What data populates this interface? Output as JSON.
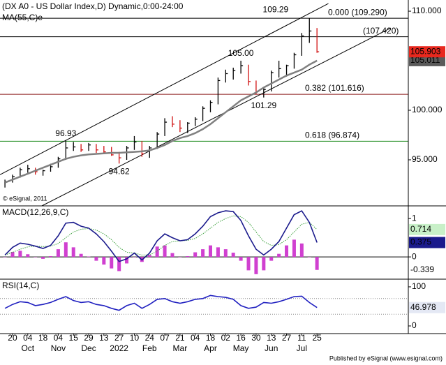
{
  "chart_data": [
    {
      "type": "ohlc",
      "title": "(DX A0 - US Dollar Index,D) Dynamic,0:00-24:00",
      "x": [
        -1,
        0,
        1,
        2,
        3,
        4,
        5,
        6,
        7,
        8,
        9,
        10,
        11,
        12,
        13,
        14,
        15,
        16,
        17,
        18,
        19,
        20,
        21,
        22,
        23,
        24,
        25,
        26,
        27,
        28,
        29,
        30,
        31,
        32,
        33,
        34,
        35,
        36,
        37,
        38,
        39,
        40
      ],
      "high": [
        93.0,
        93.5,
        94.2,
        94.5,
        94.2,
        94.0,
        94.6,
        95.3,
        96.93,
        96.8,
        96.6,
        96.7,
        96.6,
        96.4,
        96.3,
        95.8,
        96.4,
        97.4,
        96.9,
        96.4,
        97.8,
        99.2,
        99.4,
        99.0,
        98.8,
        99.3,
        100.4,
        101.0,
        103.3,
        104.1,
        104.3,
        105.0,
        104.6,
        103.0,
        102.3,
        104.0,
        105.0,
        104.6,
        105.8,
        107.8,
        109.29,
        108.3
      ],
      "low": [
        92.2,
        92.7,
        93.2,
        93.7,
        93.5,
        93.4,
        93.8,
        94.2,
        95.0,
        95.9,
        95.8,
        95.9,
        95.7,
        95.6,
        95.4,
        94.62,
        95.0,
        96.0,
        95.3,
        95.2,
        96.1,
        97.4,
        98.3,
        97.8,
        97.7,
        98.4,
        98.9,
        99.8,
        100.6,
        102.8,
        103.1,
        103.7,
        102.5,
        101.6,
        101.29,
        101.9,
        103.3,
        103.4,
        104.2,
        105.5,
        106.8,
        105.8
      ],
      "close": [
        92.8,
        93.3,
        94.0,
        94.1,
        93.8,
        93.9,
        94.3,
        95.1,
        96.2,
        96.3,
        96.0,
        96.5,
        96.0,
        95.8,
        95.5,
        95.2,
        96.2,
        96.8,
        95.6,
        96.2,
        97.6,
        98.8,
        98.6,
        98.2,
        98.7,
        99.1,
        100.2,
        100.8,
        103.0,
        103.7,
        104.0,
        104.5,
        102.9,
        101.9,
        102.1,
        103.8,
        104.2,
        104.5,
        105.6,
        107.5,
        108.0,
        105.903
      ],
      "close_label": "105.903",
      "up_color": "#000000",
      "down_color": "#d01010",
      "label_bg": "#e8281e",
      "xlim": [
        -1.65,
        52
      ],
      "ylim": [
        90.35,
        111.13
      ],
      "yticks": [
        {
          "value": 95,
          "label": "95.000"
        },
        {
          "value": 100,
          "label": "100.000"
        },
        {
          "value": 110,
          "label": "110.000"
        }
      ],
      "series": [
        {
          "name": "MA(55,C)e",
          "color": "#808080",
          "label_bg": "#5a5a5a",
          "last_label": "105.011",
          "values": [
            92.7,
            93.0,
            93.3,
            93.6,
            93.9,
            94.2,
            94.5,
            94.8,
            95.1,
            95.3,
            95.45,
            95.55,
            95.6,
            95.65,
            95.7,
            95.7,
            95.75,
            95.8,
            95.85,
            95.95,
            96.2,
            96.5,
            96.9,
            97.2,
            97.4,
            97.7,
            98.1,
            98.6,
            99.2,
            99.8,
            100.4,
            101.0,
            101.4,
            101.8,
            102.3,
            102.7,
            103.1,
            103.5,
            103.8,
            104.1,
            104.6,
            105.011
          ]
        }
      ],
      "levels": [
        {
          "value": 109.29,
          "label": "0.000 (109.290)",
          "color": "#000000"
        },
        {
          "value": 107.42,
          "label": "(107.420)",
          "color": "#000000"
        },
        {
          "value": 101.616,
          "label": "0.382 (101.616)",
          "color": "#8b1a1a"
        },
        {
          "value": 96.874,
          "label": "0.618 (96.874)",
          "color": "#1a8a1a"
        }
      ],
      "channel_lines": [
        {
          "x": [
            -1.65,
            41.5
          ],
          "y": [
            93.5,
            110.77
          ]
        },
        {
          "x": [
            3.85,
            49.7
          ],
          "y": [
            90.35,
            108.31
          ]
        }
      ],
      "annotations": [
        {
          "text": "109.29",
          "x": 39,
          "y": 109.29,
          "position": "left"
        },
        {
          "text": "105.00",
          "x": 30,
          "y": 105.0,
          "position": "above"
        },
        {
          "text": "96.93",
          "x": 7,
          "y": 96.93,
          "position": "above"
        },
        {
          "text": "94.62",
          "x": 14,
          "y": 94.62,
          "position": "below"
        },
        {
          "text": "101.29",
          "x": 33,
          "y": 101.29,
          "position": "below"
        }
      ],
      "watermark": "© eSignal, 2011"
    },
    {
      "type": "line",
      "title": "MACD(12,26,9,C)",
      "x": [
        -1,
        0,
        1,
        2,
        3,
        4,
        5,
        6,
        7,
        8,
        9,
        10,
        11,
        12,
        13,
        14,
        15,
        16,
        17,
        18,
        19,
        20,
        21,
        22,
        23,
        24,
        25,
        26,
        27,
        28,
        29,
        30,
        31,
        32,
        33,
        34,
        35,
        36,
        37,
        38,
        39,
        40
      ],
      "xlim": [
        -1.65,
        52
      ],
      "ylim": [
        -0.58,
        1.33
      ],
      "yticks": [
        0,
        1
      ],
      "ref_lines": [
        0
      ],
      "series": [
        {
          "style": "bar",
          "color": "#d040d0",
          "last_label": "-0.339",
          "label_color": "#d040d0",
          "values": [
            0,
            0.13,
            0.16,
            0.07,
            0,
            -0.05,
            0.02,
            0.2,
            0.38,
            0.25,
            0.08,
            0.01,
            -0.1,
            -0.2,
            -0.3,
            -0.37,
            -0.17,
            0,
            -0.13,
            0.05,
            0.27,
            0.3,
            0.1,
            0,
            0.02,
            0.12,
            0.2,
            0.3,
            0.25,
            0.2,
            0.11,
            -0.1,
            -0.35,
            -0.45,
            -0.35,
            -0.1,
            0.08,
            0.3,
            0.45,
            0.35,
            0,
            -0.339
          ]
        },
        {
          "style": "dotted",
          "color": "#3aa03a",
          "last_label": "0.714",
          "label_bg": "#c8f0c8",
          "label_color": "#1a8a1a",
          "values": [
            0.05,
            0.12,
            0.2,
            0.26,
            0.28,
            0.27,
            0.28,
            0.35,
            0.5,
            0.65,
            0.72,
            0.74,
            0.7,
            0.6,
            0.45,
            0.25,
            0.12,
            0.1,
            0.05,
            0.05,
            0.15,
            0.3,
            0.4,
            0.42,
            0.43,
            0.48,
            0.6,
            0.75,
            0.9,
            1.0,
            1.07,
            1.05,
            0.9,
            0.65,
            0.4,
            0.3,
            0.32,
            0.45,
            0.65,
            0.85,
            0.9,
            0.714
          ]
        },
        {
          "style": "solid",
          "color": "#1a1a8c",
          "last_label": "0.375",
          "label_bg": "#1a1a8c",
          "label_color": "#ffffff",
          "values": [
            0.05,
            0.25,
            0.36,
            0.33,
            0.28,
            0.22,
            0.3,
            0.55,
            0.88,
            0.9,
            0.8,
            0.75,
            0.6,
            0.4,
            0.15,
            -0.12,
            -0.05,
            0.1,
            -0.08,
            0.1,
            0.42,
            0.6,
            0.5,
            0.42,
            0.45,
            0.6,
            0.8,
            1.05,
            1.15,
            1.2,
            1.18,
            0.95,
            0.55,
            0.2,
            0.05,
            0.2,
            0.4,
            0.75,
            1.1,
            1.2,
            0.9,
            0.375
          ]
        }
      ]
    },
    {
      "type": "line",
      "title": "RSI(14,C)",
      "x": [
        -1,
        0,
        1,
        2,
        3,
        4,
        5,
        6,
        7,
        8,
        9,
        10,
        11,
        12,
        13,
        14,
        15,
        16,
        17,
        18,
        19,
        20,
        21,
        22,
        23,
        24,
        25,
        26,
        27,
        28,
        29,
        30,
        31,
        32,
        33,
        34,
        35,
        36,
        37,
        38,
        39,
        40
      ],
      "xlim": [
        -1.65,
        52
      ],
      "ylim": [
        -19.6,
        119.6
      ],
      "yticks": [
        0,
        100
      ],
      "ref_lines": [
        70,
        30
      ],
      "ref_style": "dotted",
      "series": [
        {
          "style": "solid",
          "color": "#2020c0",
          "last_label": "46.978",
          "label_bg": "#e4e8f4",
          "label_color": "#1a1a8c",
          "values": [
            45,
            55,
            62,
            60,
            52,
            55,
            60,
            68,
            75,
            65,
            60,
            62,
            55,
            52,
            45,
            40,
            52,
            58,
            45,
            55,
            68,
            70,
            62,
            58,
            62,
            68,
            70,
            78,
            75,
            73,
            68,
            52,
            45,
            48,
            60,
            58,
            62,
            68,
            75,
            76,
            60,
            46.978
          ]
        }
      ],
      "xticks": [
        {
          "value": 0,
          "label": "20"
        },
        {
          "value": 2,
          "label": "04"
        },
        {
          "value": 4,
          "label": "18"
        },
        {
          "value": 6,
          "label": "04"
        },
        {
          "value": 8,
          "label": "15"
        },
        {
          "value": 10,
          "label": "29"
        },
        {
          "value": 12,
          "label": "13"
        },
        {
          "value": 14,
          "label": "27"
        },
        {
          "value": 16,
          "label": "10"
        },
        {
          "value": 18,
          "label": "24"
        },
        {
          "value": 20,
          "label": "07"
        },
        {
          "value": 22,
          "label": "21"
        },
        {
          "value": 24,
          "label": "04"
        },
        {
          "value": 26,
          "label": "18"
        },
        {
          "value": 28,
          "label": "02"
        },
        {
          "value": 30,
          "label": "16"
        },
        {
          "value": 32,
          "label": "30"
        },
        {
          "value": 34,
          "label": "13"
        },
        {
          "value": 36,
          "label": "27"
        },
        {
          "value": 38,
          "label": "11"
        },
        {
          "value": 40,
          "label": "25"
        }
      ],
      "month_ticks": [
        {
          "value": 2,
          "label": "Oct"
        },
        {
          "value": 6,
          "label": "Nov"
        },
        {
          "value": 10,
          "label": "Dec"
        },
        {
          "value": 14,
          "label": "2022"
        },
        {
          "value": 18,
          "label": "Feb"
        },
        {
          "value": 22,
          "label": "Mar"
        },
        {
          "value": 26,
          "label": "Apr"
        },
        {
          "value": 30,
          "label": "May"
        },
        {
          "value": 34,
          "label": "Jun"
        },
        {
          "value": 38,
          "label": "Jul"
        }
      ]
    }
  ],
  "footer": "Published by eSignal (www.esignal.com)"
}
